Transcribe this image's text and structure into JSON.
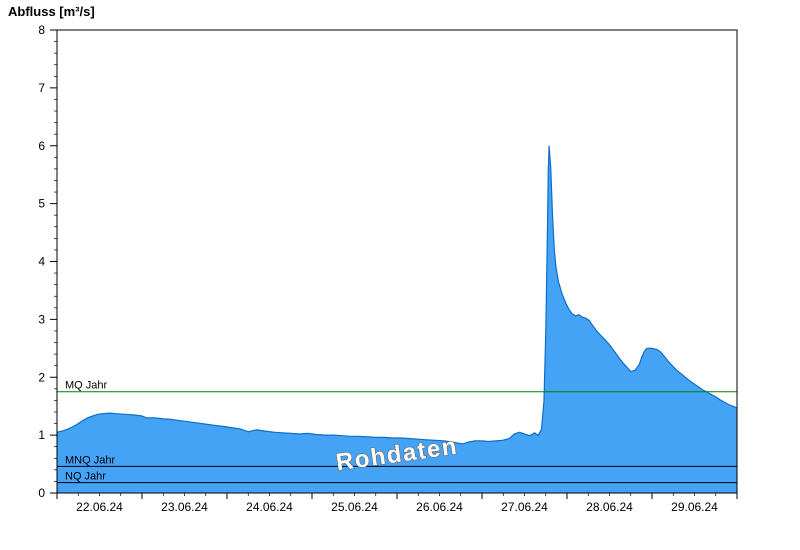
{
  "chart_data": {
    "type": "area",
    "title": "Abfluss [m³/s]",
    "ylabel": "Abfluss [m³/s]",
    "watermark": "Rohdaten",
    "x_axis": {
      "range_days": [
        0,
        8
      ],
      "day_labels": [
        "22.06.24",
        "23.06.24",
        "24.06.24",
        "25.06.24",
        "26.06.24",
        "27.06.24",
        "28.06.24",
        "29.06.24"
      ],
      "minor_tick_days": 0.25
    },
    "y_axis": {
      "ylim": [
        0,
        8
      ],
      "major_ticks": [
        0,
        1,
        2,
        3,
        4,
        5,
        6,
        7,
        8
      ],
      "minor_tick": 0.2
    },
    "series": [
      {
        "name": "Abfluss Rohdaten",
        "fill_color": "#45A3F6",
        "line_color": "#0D6EC8",
        "points_day_value": [
          [
            0.0,
            1.05
          ],
          [
            0.06,
            1.07
          ],
          [
            0.12,
            1.1
          ],
          [
            0.18,
            1.14
          ],
          [
            0.24,
            1.19
          ],
          [
            0.3,
            1.25
          ],
          [
            0.36,
            1.3
          ],
          [
            0.42,
            1.33
          ],
          [
            0.48,
            1.36
          ],
          [
            0.54,
            1.37
          ],
          [
            0.62,
            1.38
          ],
          [
            0.7,
            1.37
          ],
          [
            0.8,
            1.36
          ],
          [
            0.9,
            1.35
          ],
          [
            1.0,
            1.33
          ],
          [
            1.05,
            1.3
          ],
          [
            1.15,
            1.3
          ],
          [
            1.25,
            1.28
          ],
          [
            1.35,
            1.27
          ],
          [
            1.45,
            1.25
          ],
          [
            1.55,
            1.23
          ],
          [
            1.65,
            1.21
          ],
          [
            1.75,
            1.19
          ],
          [
            1.85,
            1.17
          ],
          [
            1.95,
            1.15
          ],
          [
            2.05,
            1.13
          ],
          [
            2.15,
            1.11
          ],
          [
            2.25,
            1.06
          ],
          [
            2.35,
            1.09
          ],
          [
            2.45,
            1.07
          ],
          [
            2.55,
            1.05
          ],
          [
            2.65,
            1.04
          ],
          [
            2.75,
            1.03
          ],
          [
            2.85,
            1.02
          ],
          [
            2.95,
            1.03
          ],
          [
            3.05,
            1.01
          ],
          [
            3.15,
            1.0
          ],
          [
            3.25,
            1.0
          ],
          [
            3.35,
            0.99
          ],
          [
            3.45,
            0.98
          ],
          [
            3.55,
            0.98
          ],
          [
            3.65,
            0.97
          ],
          [
            3.75,
            0.96
          ],
          [
            3.85,
            0.96
          ],
          [
            3.95,
            0.95
          ],
          [
            4.05,
            0.95
          ],
          [
            4.15,
            0.94
          ],
          [
            4.25,
            0.93
          ],
          [
            4.35,
            0.92
          ],
          [
            4.45,
            0.91
          ],
          [
            4.55,
            0.9
          ],
          [
            4.65,
            0.88
          ],
          [
            4.72,
            0.86
          ],
          [
            4.78,
            0.85
          ],
          [
            4.84,
            0.88
          ],
          [
            4.92,
            0.9
          ],
          [
            5.0,
            0.9
          ],
          [
            5.08,
            0.89
          ],
          [
            5.16,
            0.9
          ],
          [
            5.24,
            0.91
          ],
          [
            5.32,
            0.94
          ],
          [
            5.38,
            1.02
          ],
          [
            5.44,
            1.05
          ],
          [
            5.5,
            1.02
          ],
          [
            5.56,
            0.99
          ],
          [
            5.62,
            1.04
          ],
          [
            5.66,
            0.99
          ],
          [
            5.7,
            1.1
          ],
          [
            5.73,
            1.6
          ],
          [
            5.75,
            2.8
          ],
          [
            5.77,
            4.6
          ],
          [
            5.78,
            5.6
          ],
          [
            5.79,
            6.0
          ],
          [
            5.81,
            5.6
          ],
          [
            5.83,
            4.8
          ],
          [
            5.85,
            4.2
          ],
          [
            5.87,
            3.9
          ],
          [
            5.9,
            3.65
          ],
          [
            5.94,
            3.45
          ],
          [
            5.98,
            3.3
          ],
          [
            6.02,
            3.18
          ],
          [
            6.06,
            3.1
          ],
          [
            6.1,
            3.06
          ],
          [
            6.14,
            3.08
          ],
          [
            6.18,
            3.04
          ],
          [
            6.22,
            3.02
          ],
          [
            6.26,
            2.98
          ],
          [
            6.3,
            2.9
          ],
          [
            6.35,
            2.8
          ],
          [
            6.4,
            2.72
          ],
          [
            6.45,
            2.64
          ],
          [
            6.5,
            2.56
          ],
          [
            6.55,
            2.46
          ],
          [
            6.6,
            2.36
          ],
          [
            6.65,
            2.26
          ],
          [
            6.7,
            2.18
          ],
          [
            6.75,
            2.1
          ],
          [
            6.8,
            2.12
          ],
          [
            6.85,
            2.22
          ],
          [
            6.88,
            2.35
          ],
          [
            6.91,
            2.45
          ],
          [
            6.94,
            2.5
          ],
          [
            7.0,
            2.5
          ],
          [
            7.06,
            2.48
          ],
          [
            7.1,
            2.44
          ],
          [
            7.15,
            2.35
          ],
          [
            7.2,
            2.26
          ],
          [
            7.25,
            2.18
          ],
          [
            7.3,
            2.11
          ],
          [
            7.35,
            2.05
          ],
          [
            7.4,
            1.99
          ],
          [
            7.45,
            1.93
          ],
          [
            7.5,
            1.88
          ],
          [
            7.55,
            1.83
          ],
          [
            7.6,
            1.78
          ],
          [
            7.65,
            1.74
          ],
          [
            7.7,
            1.7
          ],
          [
            7.75,
            1.66
          ],
          [
            7.8,
            1.61
          ],
          [
            7.85,
            1.57
          ],
          [
            7.9,
            1.53
          ],
          [
            7.95,
            1.5
          ],
          [
            8.0,
            1.47
          ]
        ]
      }
    ],
    "reference_lines": [
      {
        "label": "MQ Jahr",
        "value": 1.75,
        "color": "#008000"
      },
      {
        "label": "MNQ Jahr",
        "value": 0.46,
        "color": "#000000"
      },
      {
        "label": "NQ Jahr",
        "value": 0.18,
        "color": "#000000"
      }
    ],
    "axis_color": "#000000",
    "plot_background": "#FFFFFF"
  }
}
